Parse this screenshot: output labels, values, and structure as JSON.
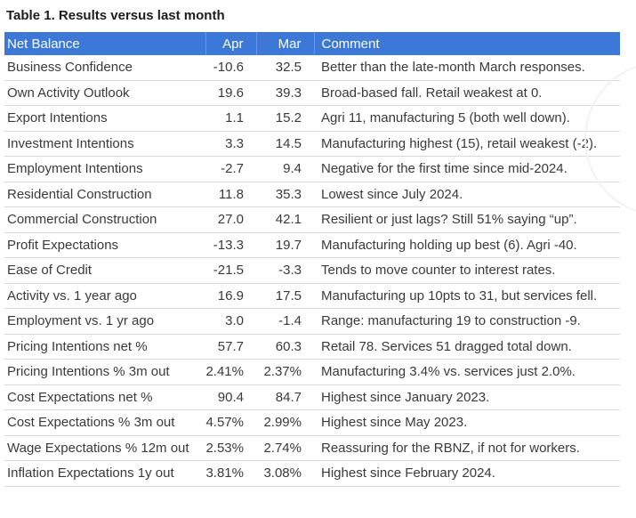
{
  "colors": {
    "header_background": "#3c78d8",
    "header_divider": "#6d93e4",
    "header_text": "#ffffff",
    "row_divider": "#d9d9d9",
    "body_text": "#3a3a3a",
    "title_text": "#1c1c1c"
  },
  "chart_data": {
    "type": "table",
    "title": "Table 1. Results versus last month",
    "columns": [
      "Net Balance",
      "Apr",
      "Mar",
      "Comment"
    ],
    "rows": [
      {
        "label": "Business Confidence",
        "apr": "-10.6",
        "mar": "32.5",
        "comment": "Better than the late-month March responses."
      },
      {
        "label": "Own Activity Outlook",
        "apr": "19.6",
        "mar": "39.3",
        "comment": "Broad-based fall. Retail weakest at 0."
      },
      {
        "label": "Export Intentions",
        "apr": "1.1",
        "mar": "15.2",
        "comment": "Agri 11, manufacturing 5 (both well down)."
      },
      {
        "label": "Investment Intentions",
        "apr": "3.3",
        "mar": "14.5",
        "comment": "Manufacturing highest (15), retail weakest (-2)."
      },
      {
        "label": "Employment Intentions",
        "apr": "-2.7",
        "mar": "9.4",
        "comment": "Negative for the first time since mid-2024."
      },
      {
        "label": "Residential Construction",
        "apr": "11.8",
        "mar": "35.3",
        "comment": "Lowest since July 2024."
      },
      {
        "label": "Commercial Construction",
        "apr": "27.0",
        "mar": "42.1",
        "comment": "Resilient or just lags? Still 51% saying “up”."
      },
      {
        "label": "Profit Expectations",
        "apr": "-13.3",
        "mar": "19.7",
        "comment": "Manufacturing holding up best (6). Agri -40."
      },
      {
        "label": "Ease of Credit",
        "apr": "-21.5",
        "mar": "-3.3",
        "comment": "Tends to move counter to interest rates."
      },
      {
        "label": "Activity vs. 1 year ago",
        "apr": "16.9",
        "mar": "17.5",
        "comment": "Manufacturing up 10pts to 31, but services fell."
      },
      {
        "label": "Employment vs. 1 yr ago",
        "apr": "3.0",
        "mar": "-1.4",
        "comment": "Range: manufacturing 19 to construction -9."
      },
      {
        "label": "Pricing Intentions net %",
        "apr": "57.7",
        "mar": "60.3",
        "comment": "Retail 78. Services 51 dragged total down."
      },
      {
        "label": "Pricing Intentions % 3m out",
        "apr": "2.41%",
        "mar": "2.37%",
        "comment": "Manufacturing 3.4% vs. services just 2.0%."
      },
      {
        "label": "Cost Expectations net %",
        "apr": "90.4",
        "mar": "84.7",
        "comment": "Highest since January 2023."
      },
      {
        "label": "Cost Expectations % 3m out",
        "apr": "4.57%",
        "mar": "2.99%",
        "comment": "Highest since May 2023."
      },
      {
        "label": "Wage Expectations % 12m out",
        "apr": "2.53%",
        "mar": "2.74%",
        "comment": "Reassuring for the RBNZ, if not for workers."
      },
      {
        "label": "Inflation Expectations 1y out",
        "apr": "3.81%",
        "mar": "3.08%",
        "comment": "Highest since February 2024."
      }
    ]
  }
}
